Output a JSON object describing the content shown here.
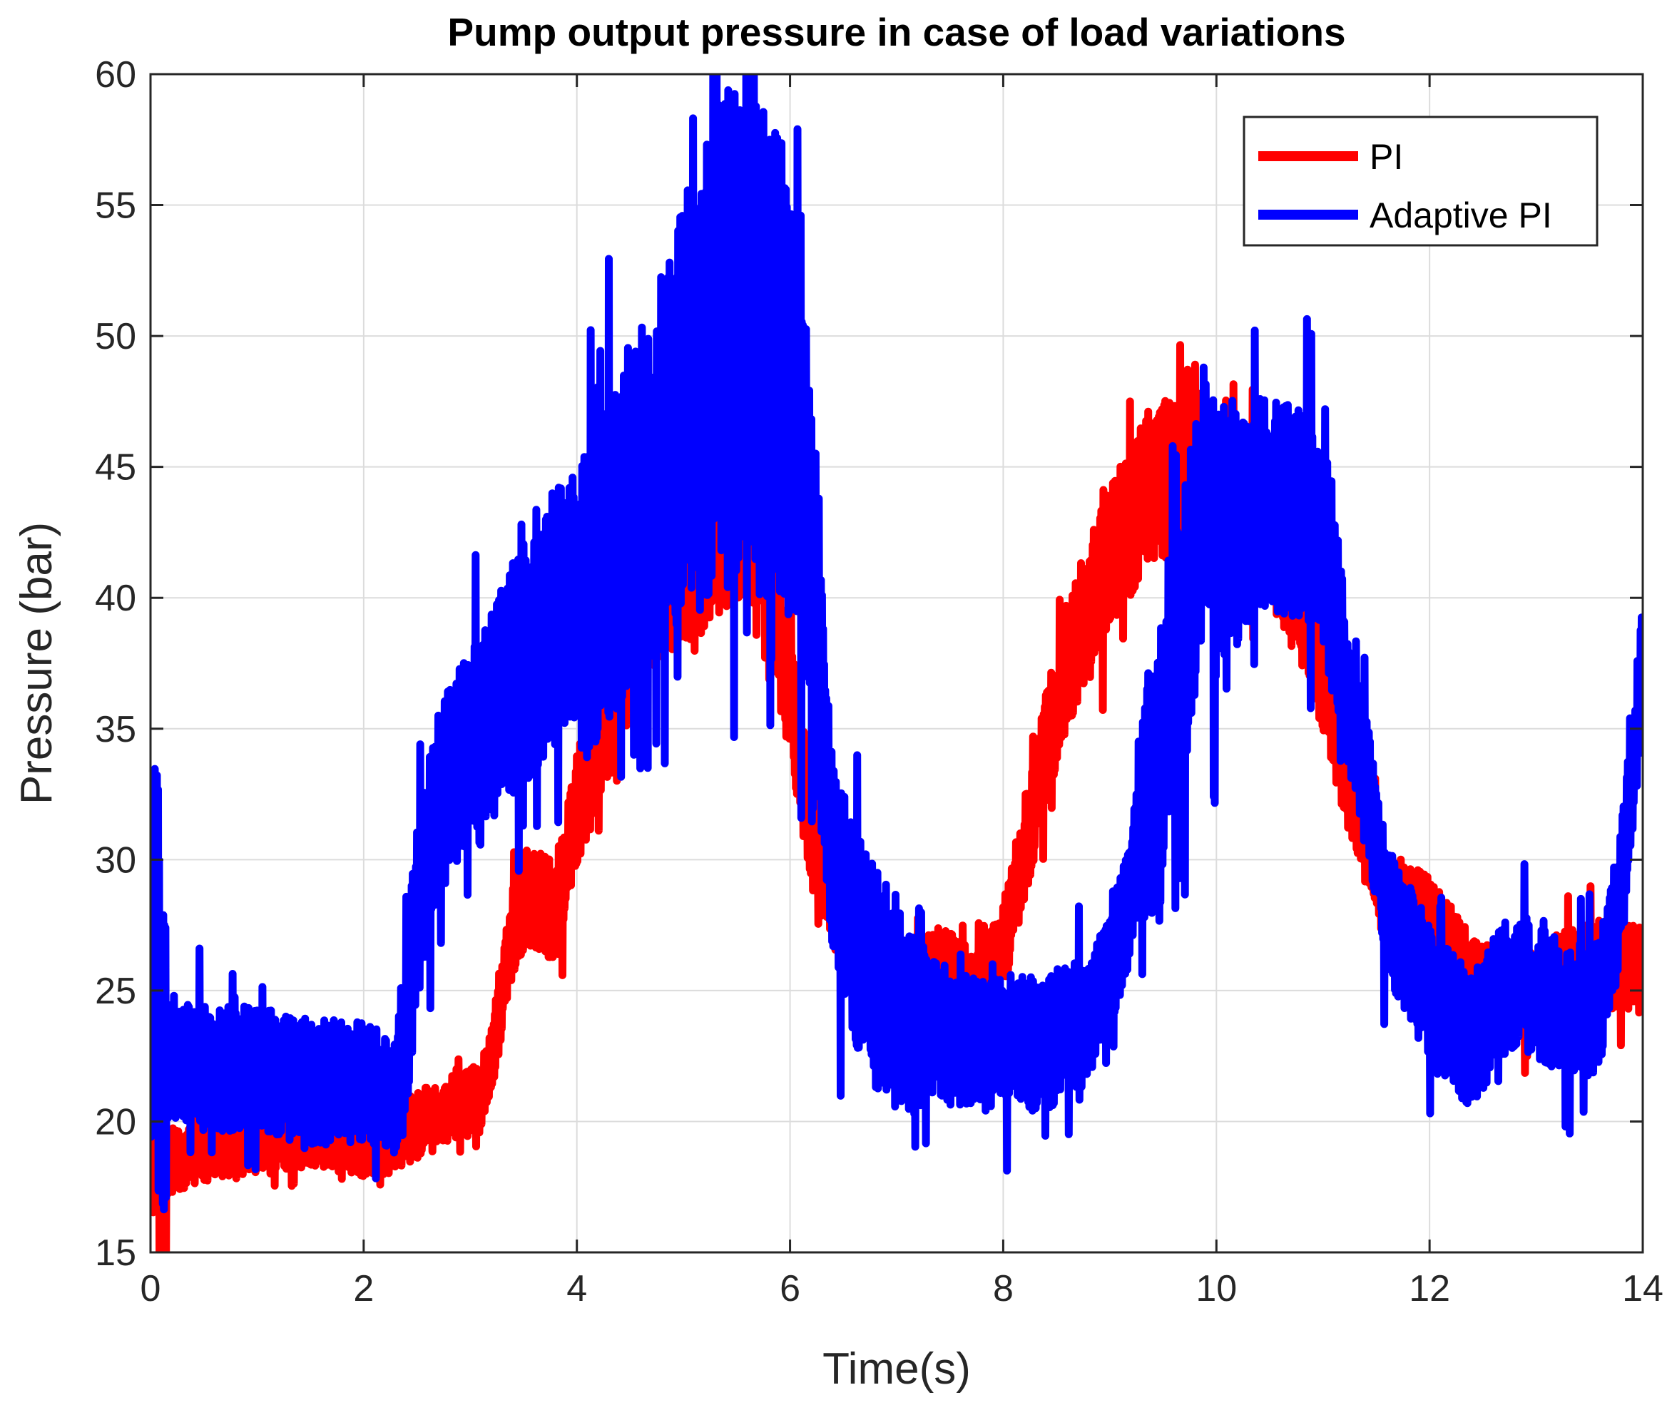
{
  "chart_data": {
    "type": "line",
    "title": "Pump output pressure in case of load variations",
    "xlabel": "Time(s)",
    "ylabel": "Pressure (bar)",
    "xlim": [
      0,
      14
    ],
    "ylim": [
      15,
      60
    ],
    "xticks": [
      0,
      2,
      4,
      6,
      8,
      10,
      12,
      14
    ],
    "yticks": [
      15,
      20,
      25,
      30,
      35,
      40,
      45,
      50,
      55,
      60
    ],
    "grid": true,
    "legend_position": "top-right",
    "series": [
      {
        "name": "PI",
        "color": "#ff0000",
        "x": [
          0,
          0.03,
          0.08,
          0.2,
          0.5,
          1.0,
          1.5,
          2.0,
          2.3,
          2.5,
          2.7,
          2.9,
          3.1,
          3.2,
          3.3,
          3.4,
          3.5,
          3.6,
          3.8,
          3.9,
          4.0,
          4.2,
          4.4,
          4.6,
          4.8,
          5.0,
          5.2,
          5.4,
          5.6,
          5.8,
          5.9,
          6.0,
          6.2,
          6.4,
          6.6,
          6.8,
          7.0,
          7.2,
          7.4,
          7.6,
          7.8,
          8.0,
          8.2,
          8.4,
          8.6,
          8.8,
          9.0,
          9.2,
          9.4,
          9.6,
          9.8,
          10.0,
          10.2,
          10.4,
          10.6,
          10.8,
          11.0,
          11.2,
          11.4,
          11.6,
          11.8,
          12.0,
          12.2,
          12.4,
          12.6,
          12.8,
          13.0,
          13.2,
          13.4,
          13.6,
          13.8,
          14.0
        ],
        "y": [
          21.0,
          23.0,
          18.0,
          18.5,
          19.0,
          19.2,
          19.6,
          19.2,
          19.3,
          19.8,
          20.3,
          20.8,
          20.8,
          22.5,
          25.0,
          27.5,
          28.5,
          28.5,
          28.0,
          30.0,
          32.0,
          34.0,
          36.5,
          39.5,
          40.5,
          41.0,
          41.5,
          42.5,
          43.0,
          42.0,
          38.5,
          36.5,
          31.0,
          28.5,
          27.0,
          26.0,
          25.5,
          25.3,
          25.8,
          25.3,
          25.0,
          26.5,
          30.5,
          34.0,
          37.5,
          39.5,
          41.5,
          43.0,
          44.5,
          44.5,
          45.0,
          44.0,
          43.0,
          43.5,
          42.0,
          40.0,
          37.5,
          34.0,
          31.0,
          28.5,
          27.8,
          27.8,
          26.5,
          25.3,
          25.0,
          24.8,
          25.0,
          25.5,
          25.8,
          26.0,
          26.0,
          25.8
        ]
      },
      {
        "name": "Adaptive PI",
        "color": "#0000ff",
        "x": [
          0,
          0.05,
          0.1,
          0.2,
          0.5,
          1.0,
          1.5,
          2.0,
          2.3,
          2.4,
          2.5,
          2.7,
          2.9,
          3.1,
          3.3,
          3.5,
          3.7,
          3.9,
          4.1,
          4.3,
          4.5,
          4.7,
          4.9,
          5.1,
          5.3,
          5.5,
          5.7,
          5.9,
          6.0,
          6.1,
          6.2,
          6.3,
          6.4,
          6.6,
          6.8,
          7.0,
          7.2,
          7.4,
          7.6,
          7.8,
          8.0,
          8.2,
          8.4,
          8.6,
          8.8,
          9.0,
          9.2,
          9.4,
          9.6,
          9.8,
          9.9,
          10.0,
          10.2,
          10.4,
          10.6,
          10.8,
          11.0,
          11.1,
          11.2,
          11.4,
          11.6,
          11.8,
          12.0,
          12.2,
          12.4,
          12.6,
          12.8,
          13.0,
          13.2,
          13.4,
          13.6,
          13.8,
          13.9,
          14.0
        ],
        "y": [
          27.0,
          30.0,
          22.0,
          22.5,
          22.0,
          22.0,
          21.5,
          21.5,
          21.0,
          23.5,
          28.0,
          32.0,
          34.0,
          34.5,
          36.5,
          37.5,
          38.5,
          40.0,
          40.0,
          41.5,
          43.0,
          44.5,
          46.0,
          48.0,
          49.5,
          50.0,
          49.5,
          49.0,
          48.0,
          46.0,
          42.0,
          36.0,
          30.0,
          27.0,
          25.5,
          24.5,
          24.0,
          23.5,
          23.0,
          23.0,
          23.0,
          23.0,
          23.0,
          23.5,
          24.0,
          26.0,
          29.0,
          33.0,
          37.0,
          41.0,
          43.5,
          41.5,
          42.5,
          43.5,
          43.5,
          43.0,
          42.0,
          40.0,
          37.0,
          33.0,
          28.0,
          26.5,
          25.0,
          24.0,
          23.0,
          24.5,
          25.5,
          25.0,
          24.5,
          24.0,
          24.5,
          29.0,
          33.0,
          37.5
        ]
      }
    ]
  }
}
